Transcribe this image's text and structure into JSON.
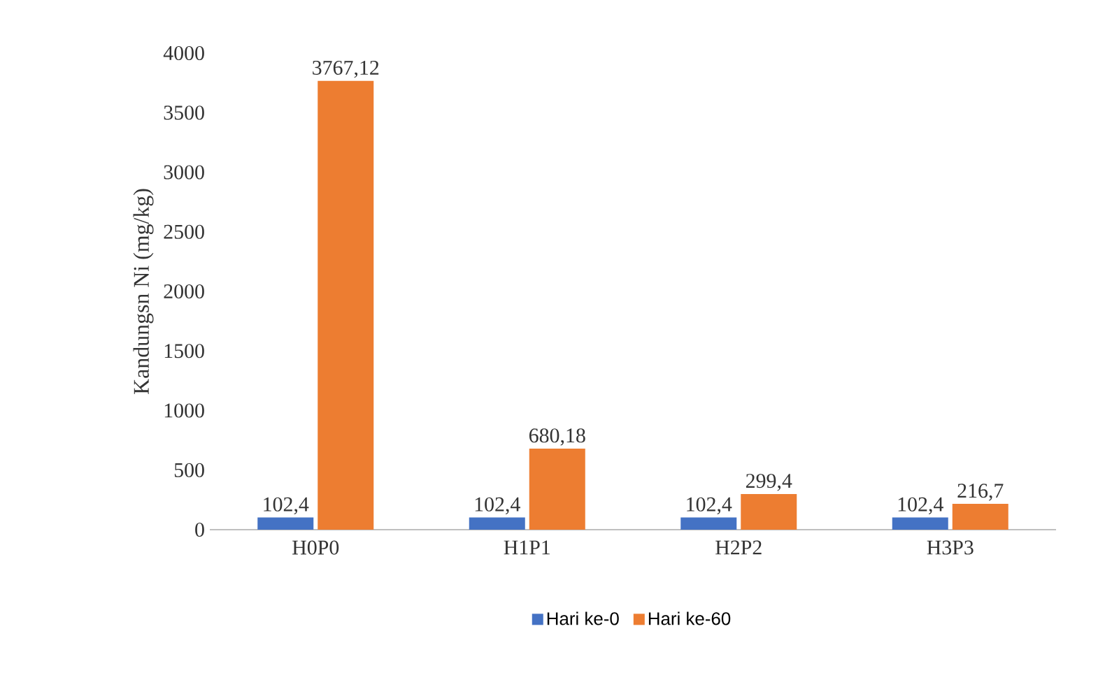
{
  "chart_data": {
    "type": "bar",
    "ylabel": "Kandungsn Ni (mg/kg)",
    "categories": [
      "H0P0",
      "H1P1",
      "H2P2",
      "H3P3"
    ],
    "series": [
      {
        "name": "Hari ke-0",
        "color": "#4472c4",
        "values": [
          102.4,
          102.4,
          102.4,
          102.4
        ],
        "value_labels": [
          "102,4",
          "102,4",
          "102,4",
          "102,4"
        ]
      },
      {
        "name": "Hari ke-60",
        "color": "#ed7d31",
        "values": [
          3767.12,
          680.18,
          299.4,
          216.7
        ],
        "value_labels": [
          "3767,12",
          "680,18",
          "299,4",
          "216,7"
        ]
      }
    ],
    "ylim": [
      0,
      4000
    ],
    "yticks": [
      0,
      500,
      1000,
      1500,
      2000,
      2500,
      3000,
      3500,
      4000
    ],
    "grid": false,
    "legend": "bottom"
  }
}
